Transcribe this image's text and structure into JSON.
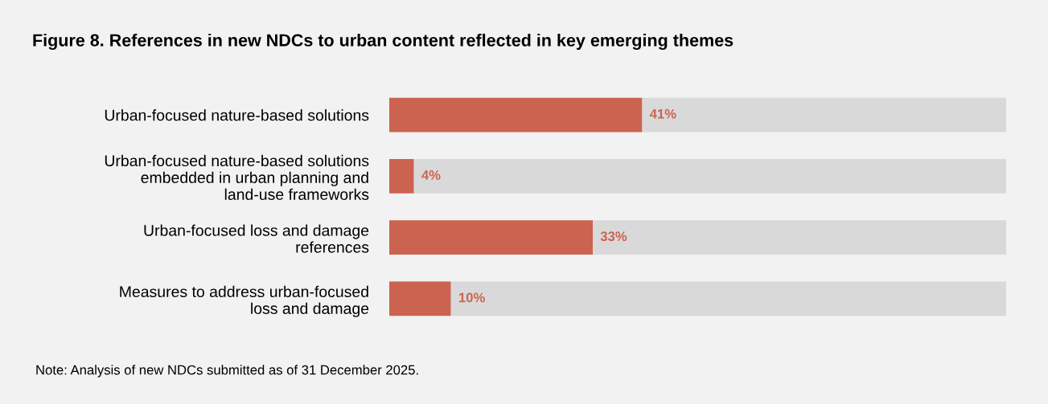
{
  "chart_data": {
    "type": "bar",
    "orientation": "horizontal",
    "stacked": true,
    "title": "Figure 8. References in new NDCs to urban content reflected in key emerging themes",
    "categories": [
      "Urban-focused nature-based solutions",
      "Urban-focused nature-based solutions\nembedded in urban planning and\nland-use frameworks",
      "Urban-focused loss and damage\nreferences",
      "Measures to address urban-focused\nloss and damage"
    ],
    "series": [
      {
        "color": "#cc6350",
        "values": [
          41,
          4,
          33,
          10
        ],
        "value_labels": [
          "41%",
          "4%",
          "33%",
          "10%"
        ]
      },
      {
        "color": "#d9d9d9",
        "values": [
          59,
          96,
          67,
          90
        ]
      }
    ],
    "xlim": [
      0,
      100
    ],
    "tick_labels": "y",
    "grid": false,
    "legend": false,
    "annotations": [
      "Note: Analysis of new NDCs submitted as of 31 December 2025."
    ]
  }
}
